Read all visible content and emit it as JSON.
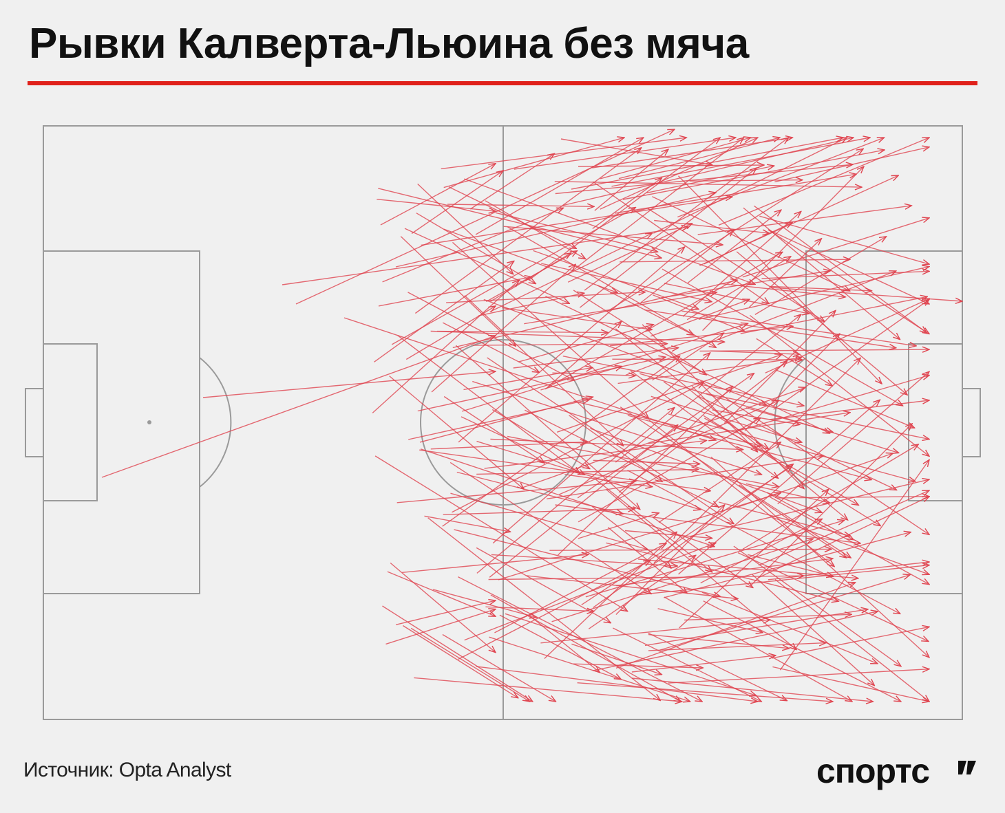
{
  "title": "Рывки Калверта-Льюина без мяча",
  "source": "Источник: Opta Analyst",
  "logo": "спортс",
  "colors": {
    "accent_rule": "#e0211b",
    "run_arrow": "#e04550",
    "pitch_lines": "#9a9a9a",
    "background": "#f0f0f0"
  }
}
